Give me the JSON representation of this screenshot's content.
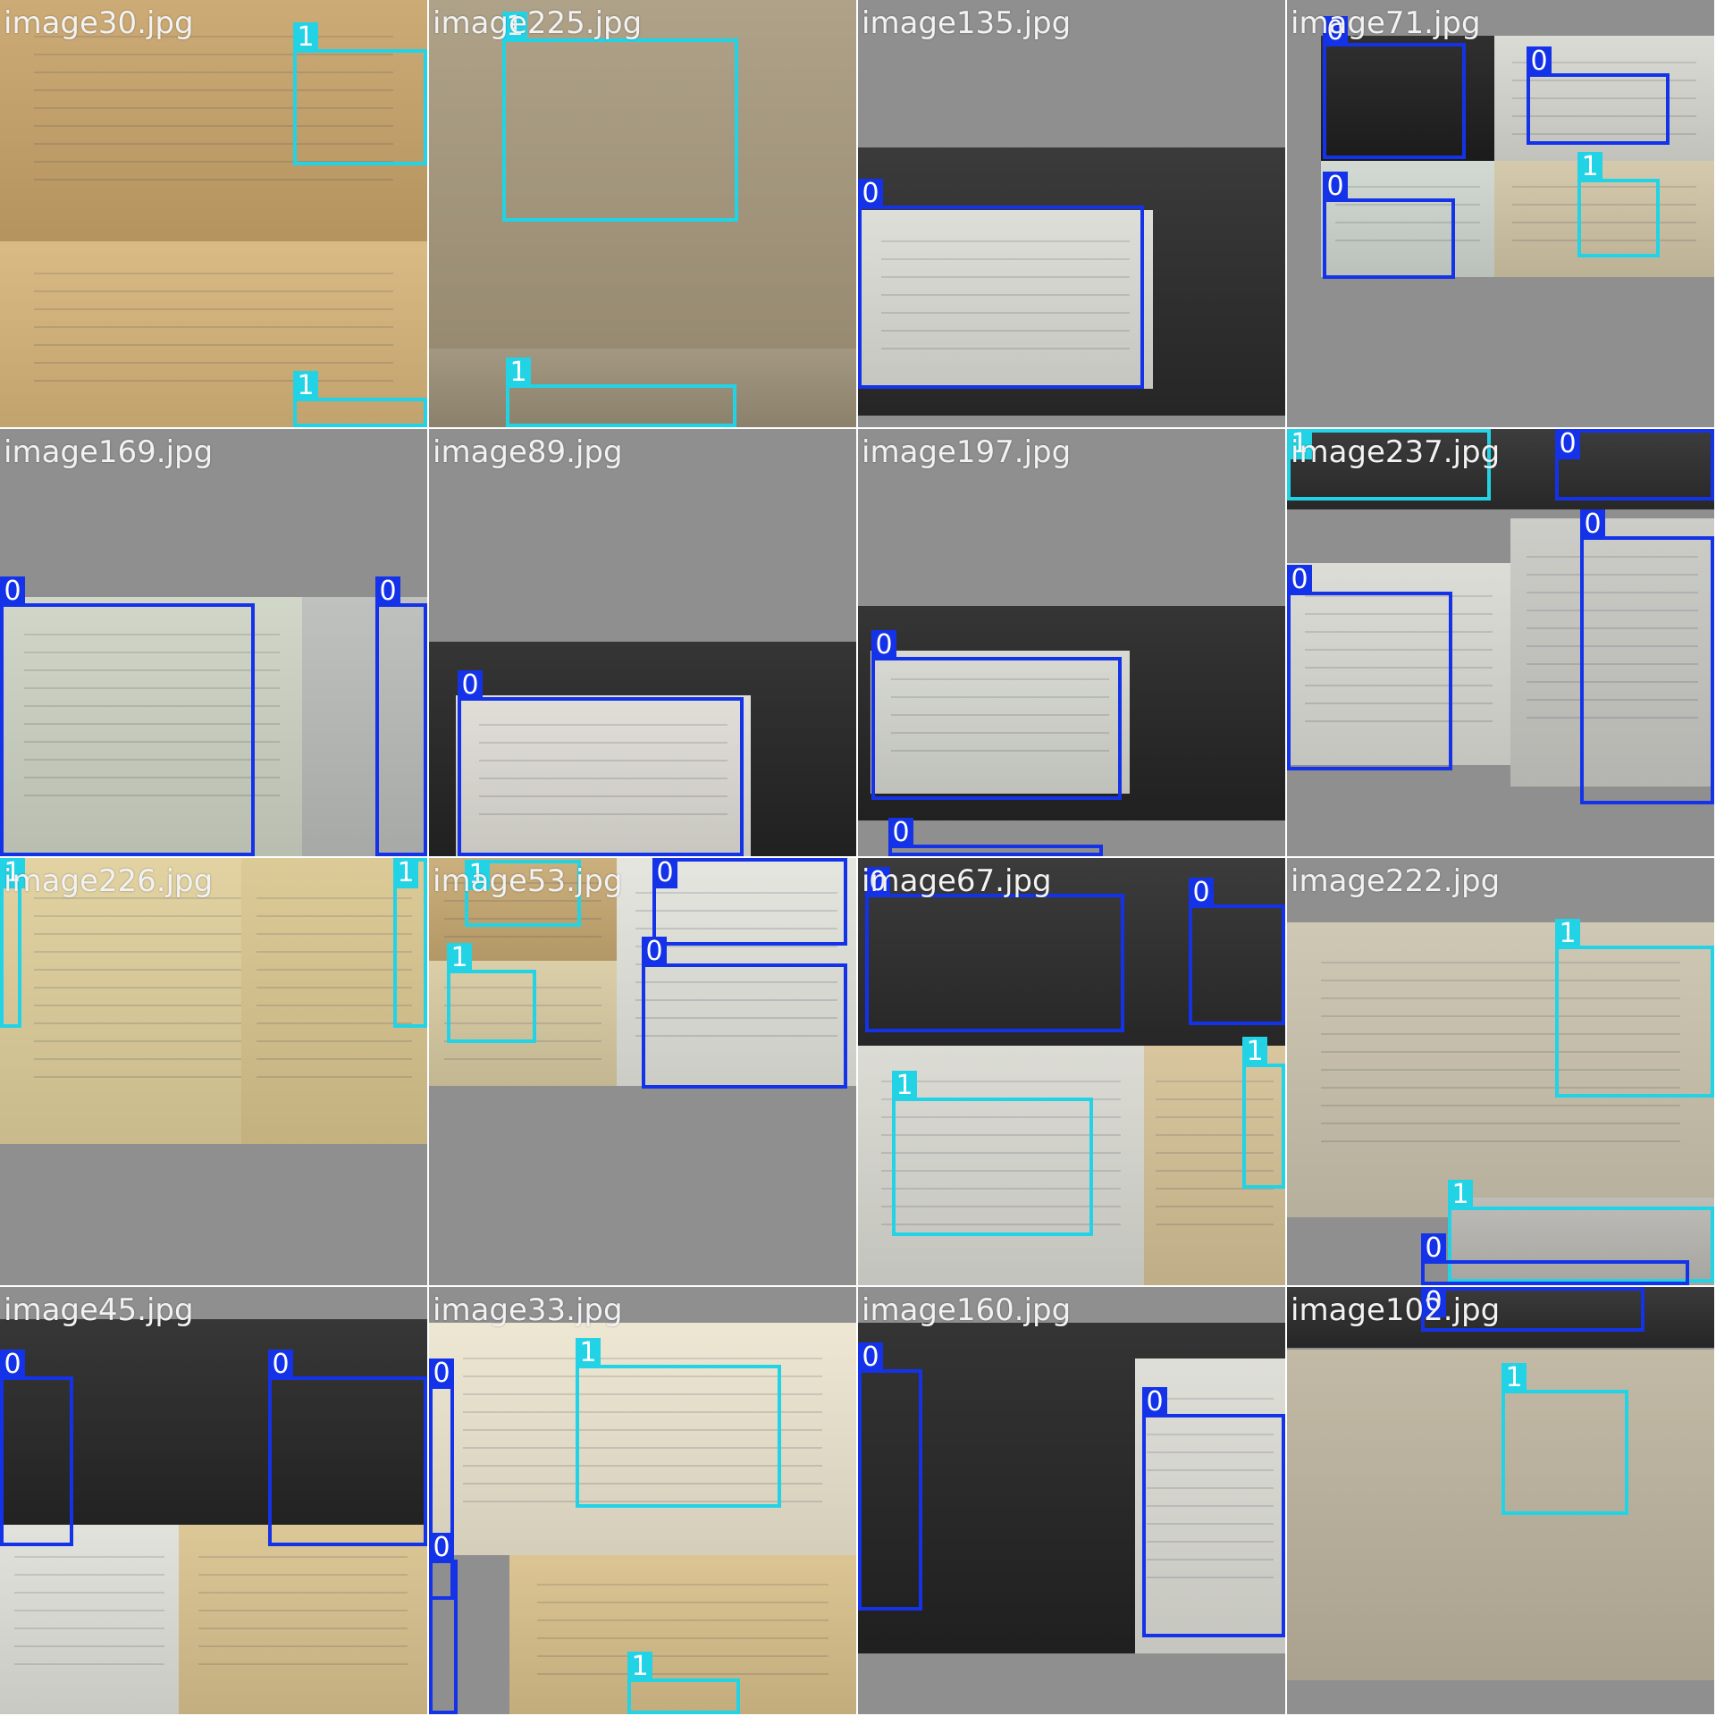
{
  "colors": {
    "class_0": "#1433e8",
    "class_1": "#22d3e6",
    "filler": "#8f8f8f",
    "text": "#f2f2f2"
  },
  "tiles": [
    {
      "filename": "image30.jpg",
      "photos": [
        {
          "bg": "#c9a46a"
        },
        {
          "bg": "#d7b57a"
        }
      ],
      "boxes": [
        {
          "label": "1",
          "cls": 1
        },
        {
          "label": "1",
          "cls": 1
        }
      ]
    },
    {
      "filename": "image225.jpg",
      "photos": [
        {
          "bg": "#a89a7e"
        },
        {
          "bg": "#9b8f77"
        }
      ],
      "boxes": [
        {
          "label": "1",
          "cls": 1
        },
        {
          "label": "1",
          "cls": 1
        }
      ]
    },
    {
      "filename": "image135.jpg",
      "photos": [
        {
          "bg": "#2a2a2a"
        },
        {
          "bg": "#dcdcd6"
        }
      ],
      "boxes": [
        {
          "label": "0",
          "cls": 0
        }
      ]
    },
    {
      "filename": "image71.jpg",
      "photos": [
        {
          "bg": "#1e1e1e"
        },
        {
          "bg": "#d8d8d2"
        },
        {
          "bg": "#cfd7cf"
        },
        {
          "bg": "#d1c5a5"
        }
      ],
      "boxes": [
        {
          "label": "0",
          "cls": 0
        },
        {
          "label": "0",
          "cls": 0
        },
        {
          "label": "0",
          "cls": 0
        },
        {
          "label": "1",
          "cls": 1
        }
      ]
    },
    {
      "filename": "image169.jpg",
      "photos": [
        {
          "bg": "#cdd3c4"
        },
        {
          "bg": "#b9bcb8"
        }
      ],
      "boxes": [
        {
          "label": "0",
          "cls": 0
        },
        {
          "label": "0",
          "cls": 0
        }
      ]
    },
    {
      "filename": "image89.jpg",
      "photos": [
        {
          "bg": "#242424"
        },
        {
          "bg": "#dedcd5"
        }
      ],
      "boxes": [
        {
          "label": "0",
          "cls": 0
        }
      ]
    },
    {
      "filename": "image197.jpg",
      "photos": [
        {
          "bg": "#242424"
        },
        {
          "bg": "#d4d6cf"
        }
      ],
      "boxes": [
        {
          "label": "0",
          "cls": 0
        },
        {
          "label": "0",
          "cls": 0
        }
      ]
    },
    {
      "filename": "image237.jpg",
      "photos": [
        {
          "bg": "#2c2c2c"
        },
        {
          "bg": "#d9dad3"
        },
        {
          "bg": "#c8c9c3"
        }
      ],
      "boxes": [
        {
          "label": "1",
          "cls": 1
        },
        {
          "label": "0",
          "cls": 0
        },
        {
          "label": "0",
          "cls": 0
        },
        {
          "label": "0",
          "cls": 0
        }
      ]
    },
    {
      "filename": "image226.jpg",
      "photos": [
        {
          "bg": "#e0cf9b"
        },
        {
          "bg": "#d9c68e"
        }
      ],
      "boxes": [
        {
          "label": "1",
          "cls": 1
        },
        {
          "label": "1",
          "cls": 1
        }
      ]
    },
    {
      "filename": "image53.jpg",
      "photos": [
        {
          "bg": "#c7a972"
        },
        {
          "bg": "#e2e4dc"
        },
        {
          "bg": "#d8cba2"
        },
        {
          "bg": "#e3e5df"
        }
      ],
      "boxes": [
        {
          "label": "1",
          "cls": 1
        },
        {
          "label": "0",
          "cls": 0
        },
        {
          "label": "1",
          "cls": 1
        },
        {
          "label": "0",
          "cls": 0
        }
      ]
    },
    {
      "filename": "image67.jpg",
      "photos": [
        {
          "bg": "#2b2b2b"
        },
        {
          "bg": "#d9d9d2"
        },
        {
          "bg": "#d5c196"
        }
      ],
      "boxes": [
        {
          "label": "0",
          "cls": 0
        },
        {
          "label": "0",
          "cls": 0
        },
        {
          "label": "1",
          "cls": 1
        },
        {
          "label": "1",
          "cls": 1
        }
      ]
    },
    {
      "filename": "image222.jpg",
      "photos": [
        {
          "bg": "#cbc3ad"
        },
        {
          "bg": "#b8b7b2"
        }
      ],
      "boxes": [
        {
          "label": "1",
          "cls": 1
        },
        {
          "label": "1",
          "cls": 1
        },
        {
          "label": "0",
          "cls": 0
        }
      ]
    },
    {
      "filename": "image45.jpg",
      "photos": [
        {
          "bg": "#262626"
        },
        {
          "bg": "#e0e0da"
        },
        {
          "bg": "#d9c28e"
        }
      ],
      "boxes": [
        {
          "label": "0",
          "cls": 0
        },
        {
          "label": "0",
          "cls": 0
        }
      ]
    },
    {
      "filename": "image33.jpg",
      "photos": [
        {
          "bg": "#ece5cf"
        },
        {
          "bg": "#d9c08a"
        }
      ],
      "boxes": [
        {
          "label": "0",
          "cls": 0
        },
        {
          "label": "1",
          "cls": 1
        },
        {
          "label": "0",
          "cls": 0
        },
        {
          "label": "1",
          "cls": 1
        }
      ]
    },
    {
      "filename": "image160.jpg",
      "photos": [
        {
          "bg": "#232323"
        },
        {
          "bg": "#dcdcd5"
        }
      ],
      "boxes": [
        {
          "label": "0",
          "cls": 0
        },
        {
          "label": "0",
          "cls": 0
        }
      ]
    },
    {
      "filename": "image102.jpg",
      "photos": [
        {
          "bg": "#bdb49e"
        },
        {
          "bg": "#2a2a2a"
        }
      ],
      "boxes": [
        {
          "label": "0",
          "cls": 0
        },
        {
          "label": "1",
          "cls": 1
        }
      ]
    }
  ]
}
